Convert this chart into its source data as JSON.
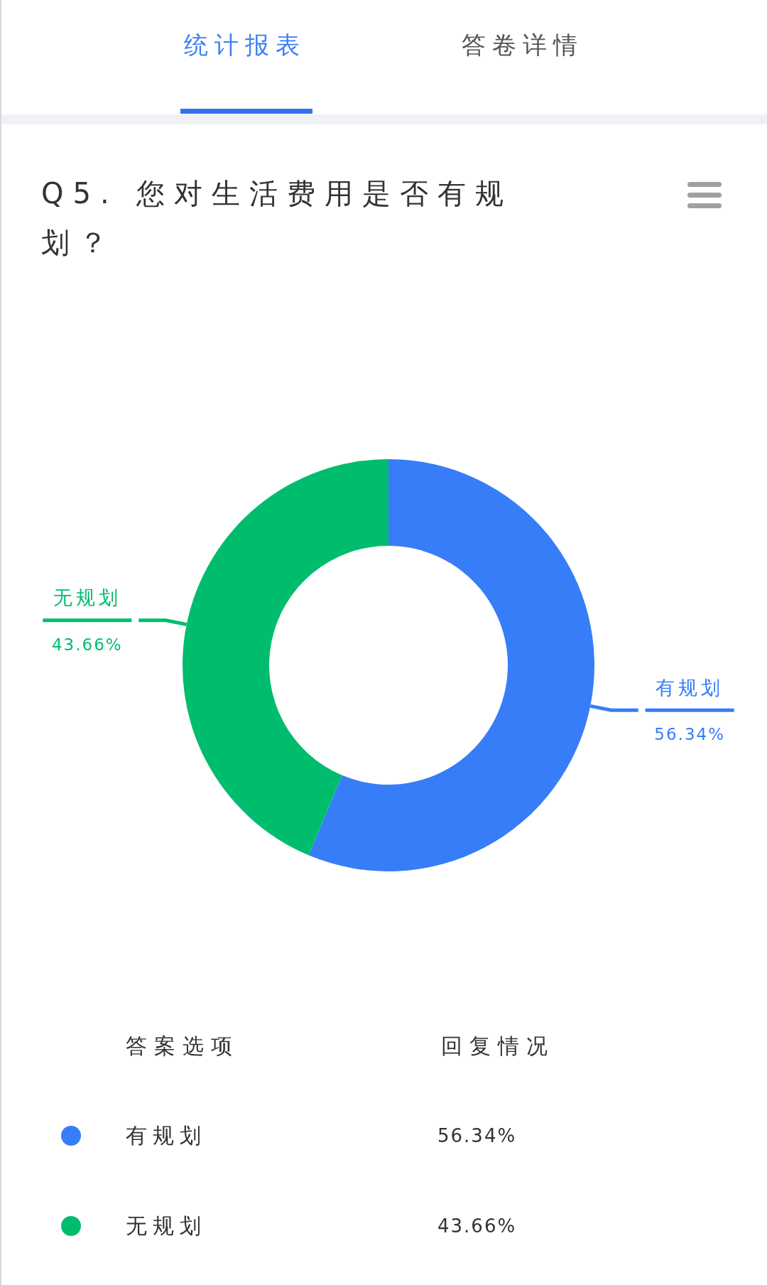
{
  "chart_data": {
    "type": "donut",
    "title": "Q5. 您对生活费用是否有规划？",
    "categories": [
      "有规划",
      "无规划"
    ],
    "values": [
      56.34,
      43.66
    ],
    "colors": [
      "#377df8",
      "#00bd6e"
    ],
    "value_labels": [
      "56.34%",
      "43.66%"
    ],
    "annotations": [
      "统计报表",
      "答卷详情",
      "答案选项",
      "回复情况"
    ],
    "legend": "bottom"
  }
}
